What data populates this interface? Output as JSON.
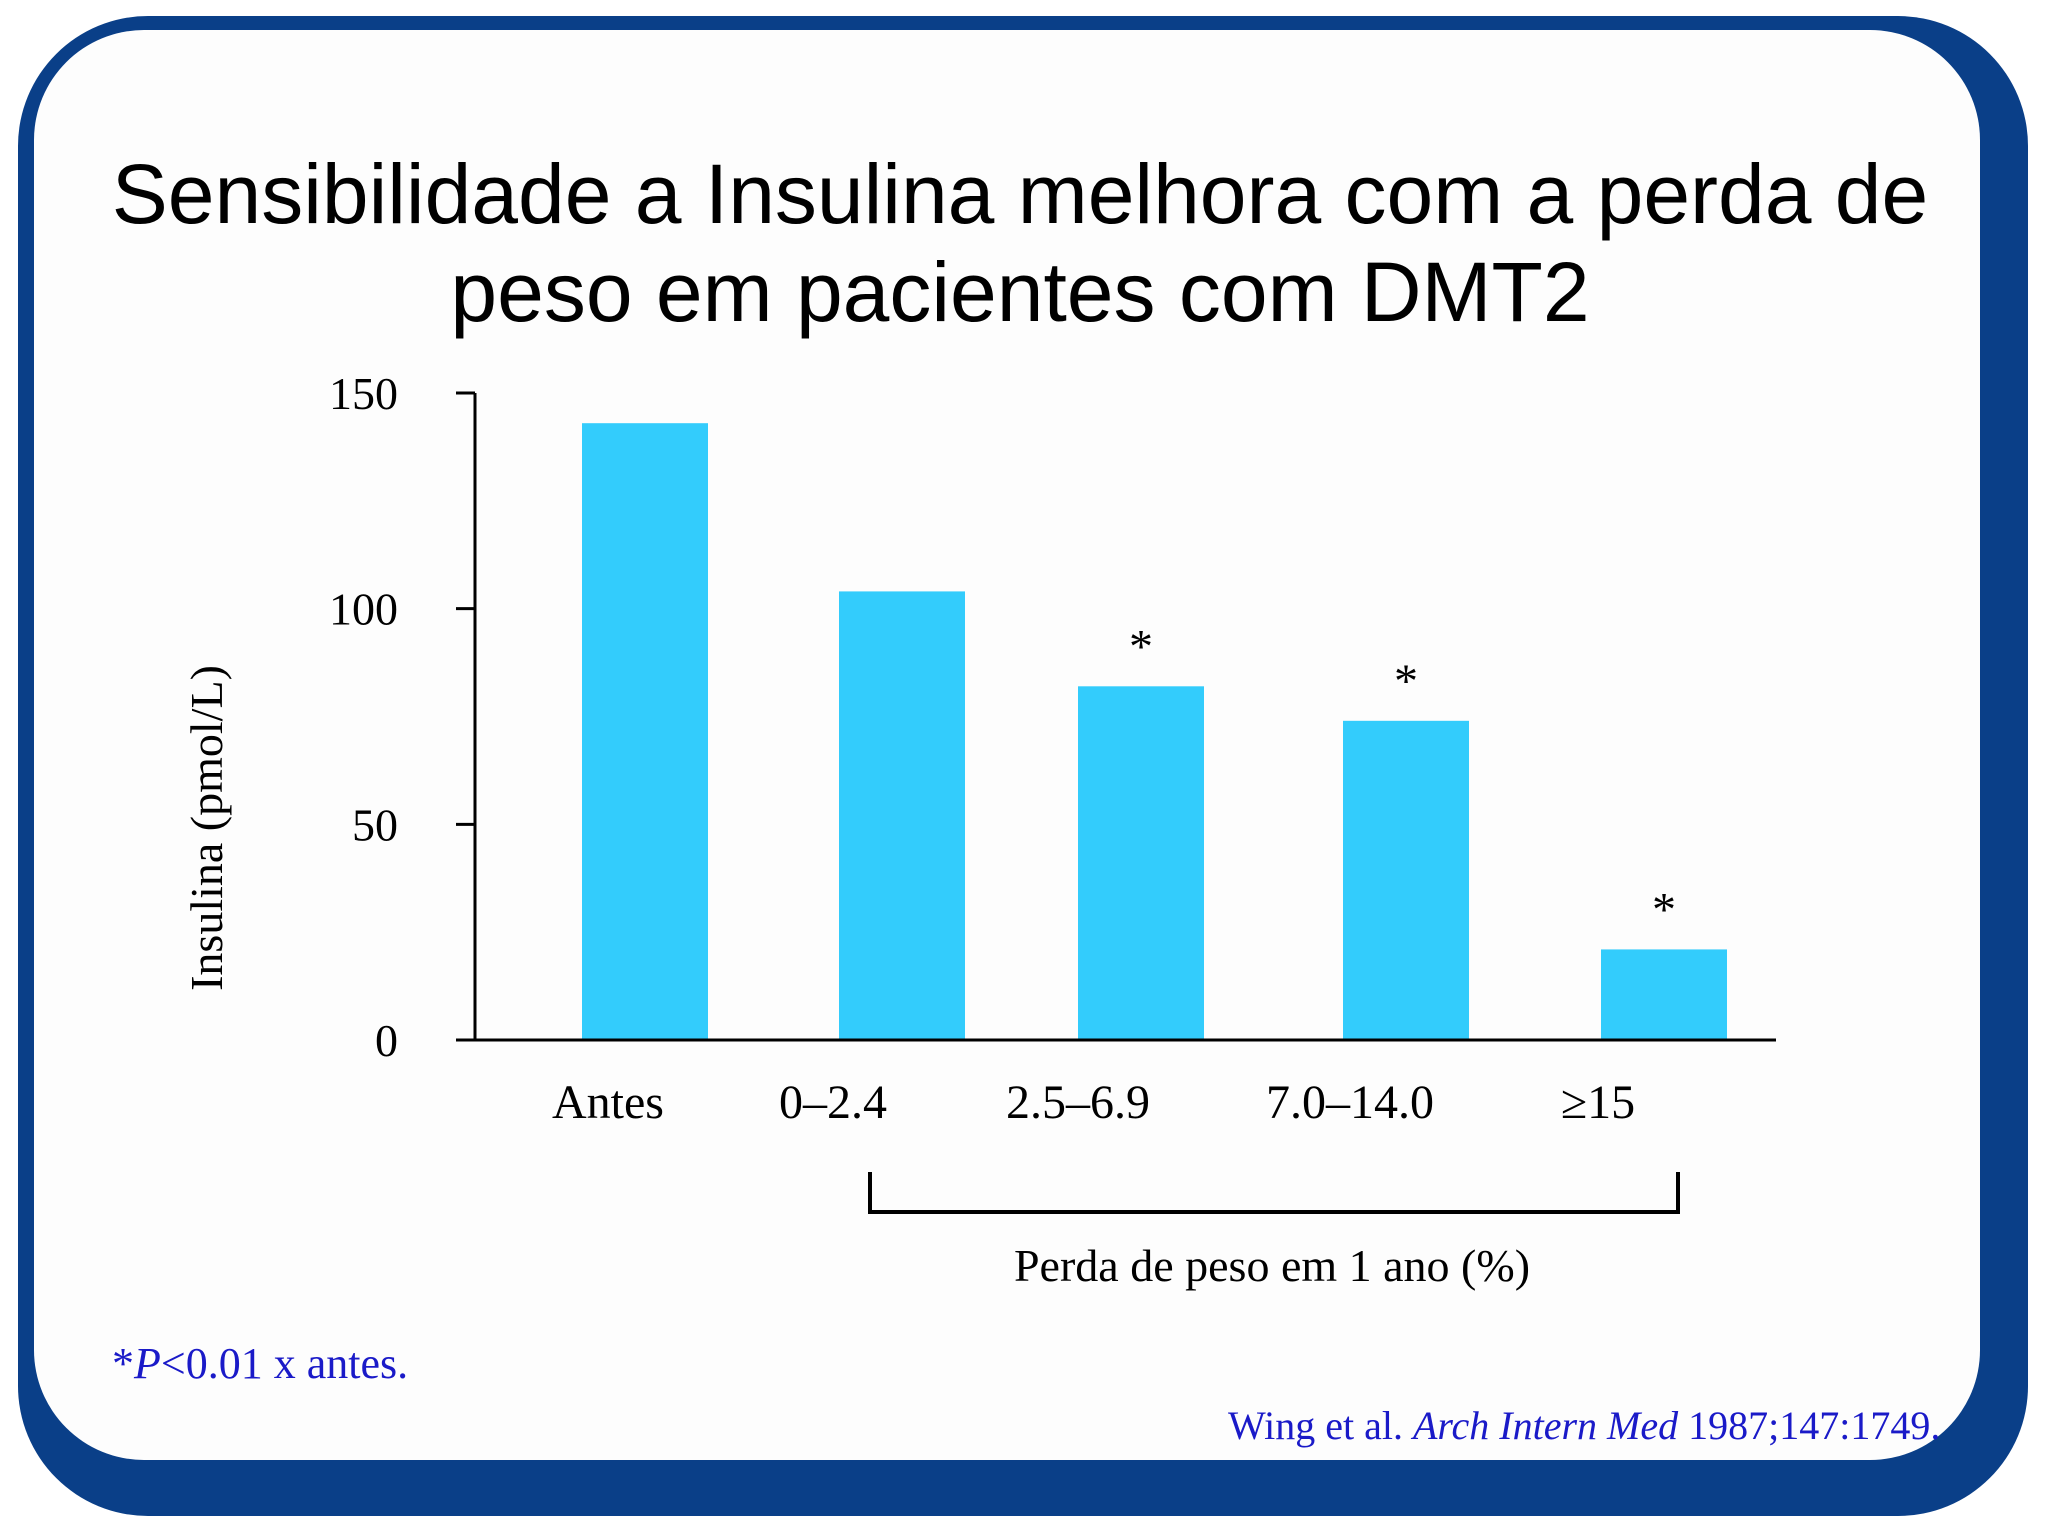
{
  "title": {
    "line1": "Sensibilidade a Insulina melhora com a perda de",
    "line2": "peso em pacientes com DMT2"
  },
  "chart_data": {
    "type": "bar",
    "title": "Sensibilidade a Insulina melhora com a perda de peso em pacientes com DMT2",
    "categories": [
      "Antes",
      "0–2.4",
      "2.5–6.9",
      "7.0–14.0",
      "≥15"
    ],
    "values": [
      143,
      104,
      82,
      74,
      21
    ],
    "significant": [
      false,
      false,
      true,
      true,
      true
    ],
    "significance_marker": "*",
    "ylabel": "Insulina (pmol/L)",
    "xlabel": "Perda de peso em 1 ano (%)",
    "yticks": [
      0,
      50,
      100,
      150
    ],
    "ylim": [
      0,
      150
    ],
    "bar_color": "#33ccfc",
    "grid": false,
    "legend": "none"
  },
  "footnote": {
    "star": "*",
    "p": "P",
    "rest": "<0.01 x antes."
  },
  "citation": {
    "authors": "Wing et al. ",
    "journal": "Arch Intern Med",
    "ref": " 1987;147:1749."
  },
  "colors": {
    "frame": "#0a3f88",
    "accent_text": "#1a1ac8"
  }
}
